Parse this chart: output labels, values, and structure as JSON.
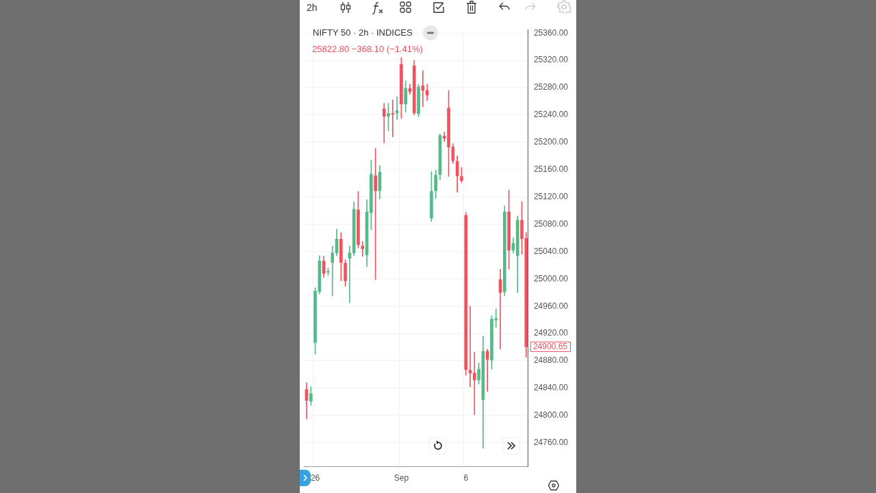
{
  "chart_data": {
    "type": "candlestick",
    "title": "NIFTY 50 · 2h · INDICES",
    "subtitle": "25822.80 −368.10 (−1.41%)",
    "categories": [
      null,
      null,
      "26",
      null,
      null,
      null,
      null,
      null,
      null,
      null,
      null,
      null,
      null,
      null,
      null,
      null,
      null,
      null,
      null,
      null,
      null,
      null,
      "Sep",
      null,
      null,
      null,
      null,
      null,
      null,
      null,
      null,
      null,
      null,
      null,
      null,
      null,
      null,
      "6",
      null,
      null,
      null,
      null,
      null,
      null,
      null,
      null,
      null,
      null,
      null,
      null,
      null,
      null
    ],
    "ohlc": [
      [
        24838,
        24848,
        24795,
        24822
      ],
      [
        24821,
        24842,
        24815,
        24832
      ],
      [
        24907,
        24987,
        24890,
        24982
      ],
      [
        24981,
        25034,
        24978,
        25026
      ],
      [
        25026,
        25033,
        25002,
        25008
      ],
      [
        25010,
        25016,
        25005,
        25011
      ],
      [
        25024,
        25048,
        24975,
        25038
      ],
      [
        25038,
        25073,
        25034,
        25058
      ],
      [
        25058,
        25068,
        24997,
        25024
      ],
      [
        25023,
        25028,
        24989,
        24997
      ],
      [
        25030,
        25048,
        24965,
        25038
      ],
      [
        25038,
        25113,
        25034,
        25102
      ],
      [
        25101,
        25128,
        25045,
        25050
      ],
      [
        25048,
        25055,
        25033,
        25044
      ],
      [
        25035,
        25116,
        25018,
        25098
      ],
      [
        25097,
        25174,
        25072,
        25153
      ],
      [
        25151,
        25191,
        24999,
        25129
      ],
      [
        25129,
        25166,
        25117,
        25156
      ],
      [
        25249,
        25257,
        25199,
        25238
      ],
      [
        25238,
        25257,
        25217,
        25242
      ],
      [
        25242,
        25262,
        25208,
        25241
      ],
      [
        25243,
        25267,
        25233,
        25246
      ],
      [
        25314,
        25324,
        25235,
        25256
      ],
      [
        25256,
        25290,
        25244,
        25279
      ],
      [
        25279,
        25285,
        25270,
        25274
      ],
      [
        25312,
        25320,
        25240,
        25243
      ],
      [
        25242,
        25285,
        25237,
        25281
      ],
      [
        25283,
        25305,
        25252,
        25276
      ],
      [
        25276,
        25285,
        25261,
        25269
      ],
      [
        25089,
        25157,
        25084,
        25128
      ],
      [
        25129,
        25159,
        25118,
        25152
      ],
      [
        25153,
        25212,
        25145,
        25210
      ],
      [
        25209,
        25215,
        25201,
        25206
      ],
      [
        25250,
        25276,
        25150,
        25193
      ],
      [
        25193,
        25198,
        25169,
        25173
      ],
      [
        25172,
        25180,
        25127,
        25151
      ],
      [
        25150,
        25163,
        25141,
        25144
      ],
      [
        25093,
        25097,
        24859,
        24867
      ],
      [
        24866,
        24960,
        24842,
        24862
      ],
      [
        24862,
        24893,
        24801,
        24852
      ],
      [
        24852,
        24877,
        24846,
        24868
      ],
      [
        24823,
        24916,
        24752,
        24894
      ],
      [
        24894,
        24897,
        24835,
        24882
      ],
      [
        24881,
        24946,
        24868,
        24941
      ],
      [
        24940,
        24956,
        24929,
        24942
      ],
      [
        24999,
        25014,
        24897,
        24980
      ],
      [
        24981,
        25107,
        24975,
        25098
      ],
      [
        25098,
        25130,
        25014,
        25042
      ],
      [
        25042,
        25060,
        25038,
        25052
      ],
      [
        25034,
        25092,
        24980,
        25086
      ],
      [
        25086,
        25113,
        25036,
        25059
      ],
      [
        25059,
        25068,
        24885,
        24900.65
      ]
    ],
    "colors": [
      "#ef5360",
      "#57b98a",
      "#57b98a",
      "#57b98a",
      "#ef5360",
      "#57b98a",
      "#57b98a",
      "#57b98a",
      "#ef5360",
      "#ef5360",
      "#57b98a",
      "#57b98a",
      "#ef5360",
      "#ef5360",
      "#57b98a",
      "#57b98a",
      "#ef5360",
      "#57b98a",
      "#ef5360",
      "#57b98a",
      "#ef5360",
      "#57b98a",
      "#ef5360",
      "#57b98a",
      "#ef5360",
      "#ef5360",
      "#57b98a",
      "#ef5360",
      "#ef5360",
      "#57b98a",
      "#57b98a",
      "#57b98a",
      "#ef5360",
      "#ef5360",
      "#ef5360",
      "#ef5360",
      "#ef5360",
      "#ef5360",
      "#ef5360",
      "#ef5360",
      "#57b98a",
      "#57b98a",
      "#ef5360",
      "#57b98a",
      "#57b98a",
      "#ef5360",
      "#57b98a",
      "#ef5360",
      "#57b98a",
      "#57b98a",
      "#ef5360",
      "#ef5360"
    ],
    "ylim": [
      24725,
      25365
    ],
    "yticks": [
      {
        "value": 24760,
        "label": "24760.00"
      },
      {
        "value": 24800,
        "label": "24800.00"
      },
      {
        "value": 24840,
        "label": "24840.00"
      },
      {
        "value": 24880,
        "label": "24880.00"
      },
      {
        "value": 24920,
        "label": "24920.00"
      },
      {
        "value": 24960,
        "label": "24960.00"
      },
      {
        "value": 25000,
        "label": "25000.00"
      },
      {
        "value": 25040,
        "label": "25040.00"
      },
      {
        "value": 25080,
        "label": "25080.00"
      },
      {
        "value": 25120,
        "label": "25120.00"
      },
      {
        "value": 25160,
        "label": "25160.00"
      },
      {
        "value": 25200,
        "label": "25200.00"
      },
      {
        "value": 25240,
        "label": "25240.00"
      },
      {
        "value": 25280,
        "label": "25280.00"
      },
      {
        "value": 25320,
        "label": "25320.00"
      },
      {
        "value": 25360,
        "label": "25360.00"
      }
    ],
    "annotations": [
      "24900.65",
      "2h"
    ],
    "grid": true,
    "legend": false
  }
}
